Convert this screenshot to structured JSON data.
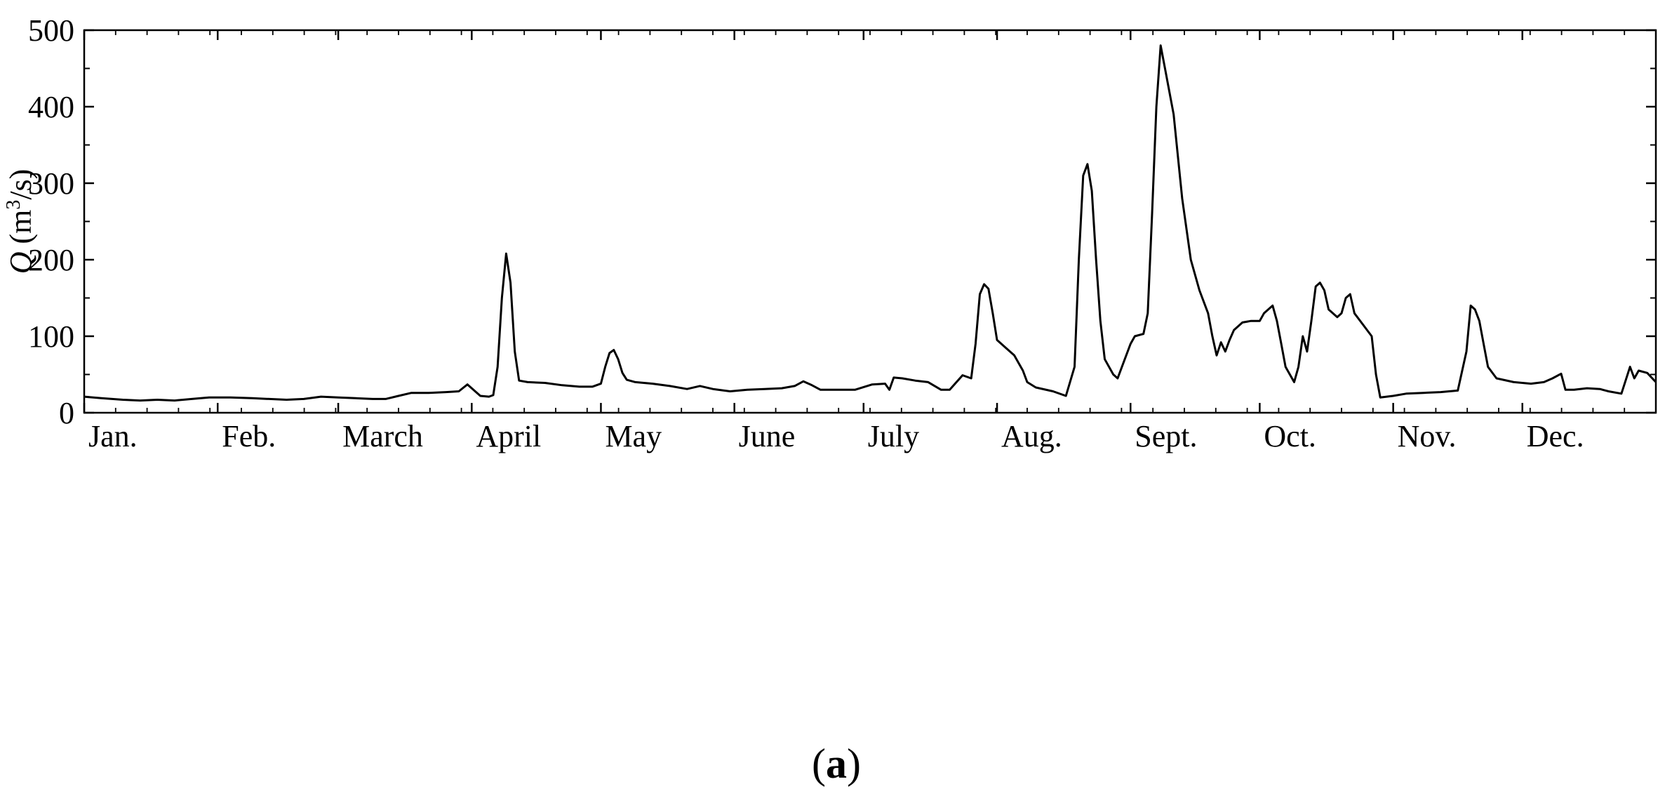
{
  "chart_data": {
    "type": "line",
    "panel_label": "a",
    "ylabel": {
      "var": "Q",
      "unit_open": " (m",
      "unit_sup": "3",
      "unit_close": "/s)"
    },
    "xlabel": "",
    "x_unit": "day of year",
    "xlim": [
      1,
      366
    ],
    "ylim": [
      0,
      500
    ],
    "y_ticks": [
      0,
      100,
      200,
      300,
      400,
      500
    ],
    "month_ticks": [
      {
        "label": "Jan.",
        "day": 1
      },
      {
        "label": "Feb.",
        "day": 32
      },
      {
        "label": "March",
        "day": 60
      },
      {
        "label": "April",
        "day": 91
      },
      {
        "label": "May",
        "day": 121
      },
      {
        "label": "June",
        "day": 152
      },
      {
        "label": "July",
        "day": 182
      },
      {
        "label": "Aug.",
        "day": 213
      },
      {
        "label": "Sept.",
        "day": 244
      },
      {
        "label": "Oct.",
        "day": 274
      },
      {
        "label": "Nov.",
        "day": 305
      },
      {
        "label": "Dec.",
        "day": 335
      }
    ],
    "grid": false,
    "series": [
      {
        "color": "#000000",
        "points": [
          [
            1,
            21
          ],
          [
            5,
            19
          ],
          [
            10,
            17
          ],
          [
            14,
            16
          ],
          [
            18,
            17
          ],
          [
            22,
            16
          ],
          [
            26,
            18
          ],
          [
            30,
            20
          ],
          [
            35,
            20
          ],
          [
            40,
            19
          ],
          [
            44,
            18
          ],
          [
            48,
            17
          ],
          [
            52,
            18
          ],
          [
            56,
            21
          ],
          [
            60,
            20
          ],
          [
            64,
            19
          ],
          [
            68,
            18
          ],
          [
            71,
            18
          ],
          [
            74,
            22
          ],
          [
            77,
            26
          ],
          [
            81,
            26
          ],
          [
            85,
            27
          ],
          [
            88,
            28
          ],
          [
            90,
            37
          ],
          [
            91,
            32
          ],
          [
            93,
            22
          ],
          [
            95,
            21
          ],
          [
            96,
            23
          ],
          [
            97,
            60
          ],
          [
            98,
            150
          ],
          [
            99,
            208
          ],
          [
            100,
            170
          ],
          [
            101,
            80
          ],
          [
            102,
            42
          ],
          [
            104,
            40
          ],
          [
            108,
            39
          ],
          [
            112,
            36
          ],
          [
            116,
            34
          ],
          [
            119,
            34
          ],
          [
            121,
            38
          ],
          [
            122,
            60
          ],
          [
            123,
            78
          ],
          [
            124,
            82
          ],
          [
            125,
            70
          ],
          [
            126,
            52
          ],
          [
            127,
            43
          ],
          [
            129,
            40
          ],
          [
            133,
            38
          ],
          [
            137,
            35
          ],
          [
            141,
            31
          ],
          [
            144,
            35
          ],
          [
            147,
            31
          ],
          [
            151,
            28
          ],
          [
            155,
            30
          ],
          [
            159,
            31
          ],
          [
            163,
            32
          ],
          [
            166,
            35
          ],
          [
            168,
            41
          ],
          [
            170,
            36
          ],
          [
            172,
            30
          ],
          [
            176,
            30
          ],
          [
            180,
            30
          ],
          [
            184,
            37
          ],
          [
            187,
            38
          ],
          [
            188,
            30
          ],
          [
            189,
            46
          ],
          [
            191,
            45
          ],
          [
            194,
            42
          ],
          [
            197,
            40
          ],
          [
            200,
            30
          ],
          [
            202,
            30
          ],
          [
            205,
            49
          ],
          [
            207,
            45
          ],
          [
            208,
            90
          ],
          [
            209,
            155
          ],
          [
            210,
            168
          ],
          [
            211,
            162
          ],
          [
            212,
            130
          ],
          [
            213,
            95
          ],
          [
            215,
            85
          ],
          [
            217,
            75
          ],
          [
            219,
            55
          ],
          [
            220,
            40
          ],
          [
            222,
            33
          ],
          [
            226,
            28
          ],
          [
            229,
            22
          ],
          [
            231,
            60
          ],
          [
            232,
            200
          ],
          [
            233,
            310
          ],
          [
            234,
            325
          ],
          [
            235,
            290
          ],
          [
            236,
            200
          ],
          [
            237,
            120
          ],
          [
            238,
            70
          ],
          [
            240,
            50
          ],
          [
            241,
            45
          ],
          [
            242,
            60
          ],
          [
            244,
            90
          ],
          [
            245,
            100
          ],
          [
            247,
            103
          ],
          [
            248,
            130
          ],
          [
            249,
            260
          ],
          [
            250,
            400
          ],
          [
            251,
            480
          ],
          [
            252,
            450
          ],
          [
            254,
            390
          ],
          [
            256,
            280
          ],
          [
            258,
            200
          ],
          [
            260,
            160
          ],
          [
            262,
            130
          ],
          [
            263,
            100
          ],
          [
            264,
            75
          ],
          [
            265,
            92
          ],
          [
            266,
            80
          ],
          [
            267,
            95
          ],
          [
            268,
            108
          ],
          [
            270,
            118
          ],
          [
            272,
            120
          ],
          [
            274,
            120
          ],
          [
            275,
            130
          ],
          [
            277,
            140
          ],
          [
            278,
            120
          ],
          [
            279,
            90
          ],
          [
            280,
            60
          ],
          [
            282,
            40
          ],
          [
            283,
            60
          ],
          [
            284,
            100
          ],
          [
            285,
            80
          ],
          [
            286,
            120
          ],
          [
            287,
            165
          ],
          [
            288,
            170
          ],
          [
            289,
            160
          ],
          [
            290,
            135
          ],
          [
            292,
            125
          ],
          [
            293,
            130
          ],
          [
            294,
            150
          ],
          [
            295,
            155
          ],
          [
            296,
            130
          ],
          [
            298,
            115
          ],
          [
            300,
            100
          ],
          [
            301,
            50
          ],
          [
            302,
            20
          ],
          [
            305,
            22
          ],
          [
            308,
            25
          ],
          [
            312,
            26
          ],
          [
            316,
            27
          ],
          [
            320,
            29
          ],
          [
            322,
            80
          ],
          [
            323,
            140
          ],
          [
            324,
            135
          ],
          [
            325,
            120
          ],
          [
            326,
            90
          ],
          [
            327,
            60
          ],
          [
            329,
            45
          ],
          [
            333,
            40
          ],
          [
            337,
            38
          ],
          [
            340,
            40
          ],
          [
            342,
            45
          ],
          [
            344,
            51
          ],
          [
            345,
            30
          ],
          [
            347,
            30
          ],
          [
            350,
            32
          ],
          [
            353,
            31
          ],
          [
            355,
            28
          ],
          [
            358,
            25
          ],
          [
            360,
            60
          ],
          [
            361,
            45
          ],
          [
            362,
            55
          ],
          [
            364,
            52
          ],
          [
            366,
            40
          ]
        ]
      }
    ]
  }
}
